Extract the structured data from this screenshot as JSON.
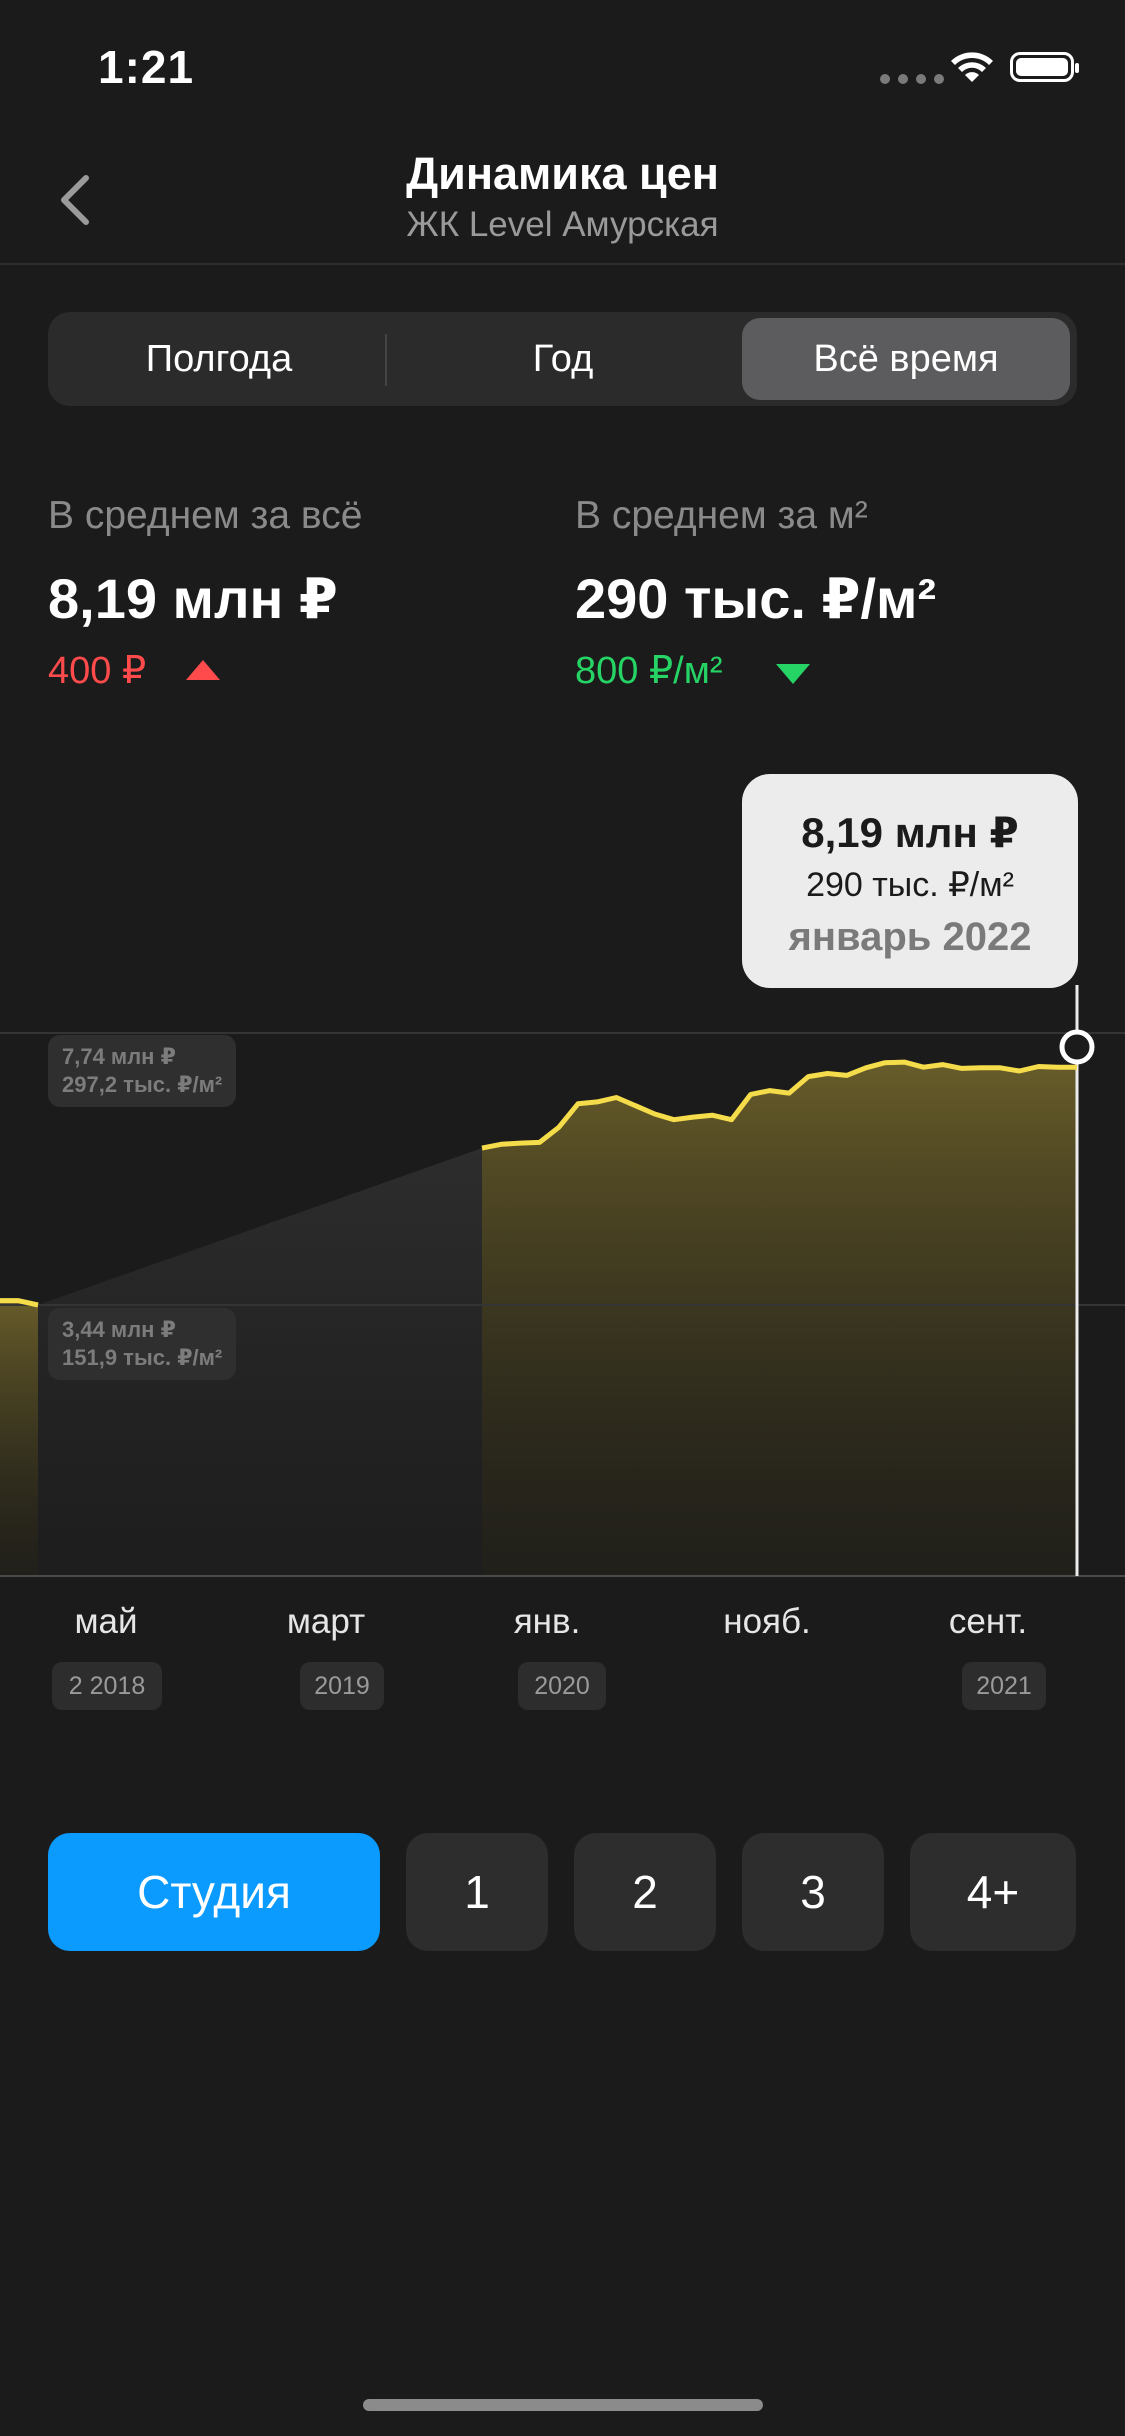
{
  "status_bar": {
    "time": "1:21"
  },
  "nav": {
    "title": "Динамика цен",
    "subtitle": "ЖК Level Амурская"
  },
  "periods": {
    "options": [
      "Полгода",
      "Год",
      "Всё время"
    ],
    "selected": "Всё время"
  },
  "stats": {
    "total": {
      "label": "В среднем за всё",
      "value": "8,19 млн ₽",
      "change": "400 ₽",
      "direction": "up",
      "color": "#ff4b4b"
    },
    "per_sqm": {
      "label": "В среднем за м²",
      "value": "290 тыс. ₽/м²",
      "change": "800 ₽/м²",
      "direction": "down",
      "color": "#26d466"
    }
  },
  "chart": {
    "ref_high": {
      "price": "7,74 млн ₽",
      "sqm": "297,2 тыс. ₽/м²"
    },
    "ref_low": {
      "price": "3,44 млн ₽",
      "sqm": "151,9 тыс. ₽/м²"
    },
    "tooltip": {
      "price": "8,19 млн ₽",
      "sqm": "290 тыс. ₽/м²",
      "date": "январь 2022"
    },
    "months": [
      "май",
      "март",
      "янв.",
      "нояб.",
      "сент."
    ],
    "years": [
      "2  2018",
      "2019",
      "2020",
      "2021"
    ],
    "line_color": "#f5dc4a"
  },
  "chart_data": {
    "type": "area",
    "y_reference_lines": [
      {
        "price_mln_rub": 7.74,
        "price_per_sqm_thousand_rub": 297.2
      },
      {
        "price_mln_rub": 3.44,
        "price_per_sqm_thousand_rub": 151.9
      }
    ],
    "series": [
      {
        "values_mln_rub": [
          3.51,
          3.51,
          3.44,
          5.92,
          5.98,
          6.0,
          6.01,
          6.25,
          6.62,
          6.65,
          6.72,
          6.59,
          6.46,
          6.37,
          6.41,
          6.44,
          6.37,
          6.77,
          6.83,
          6.79,
          7.05,
          7.1,
          7.07,
          7.19,
          7.27,
          7.28,
          7.2,
          7.24,
          7.18,
          7.19,
          7.19,
          7.14,
          7.21,
          7.2,
          7.2
        ]
      }
    ],
    "selected_point": {
      "date": "январь 2022",
      "price_mln_rub": 8.19,
      "price_per_sqm_thousand_rub": 290
    }
  },
  "rooms": {
    "options": [
      "Студия",
      "1",
      "2",
      "3",
      "4+"
    ],
    "selected": "Студия"
  }
}
